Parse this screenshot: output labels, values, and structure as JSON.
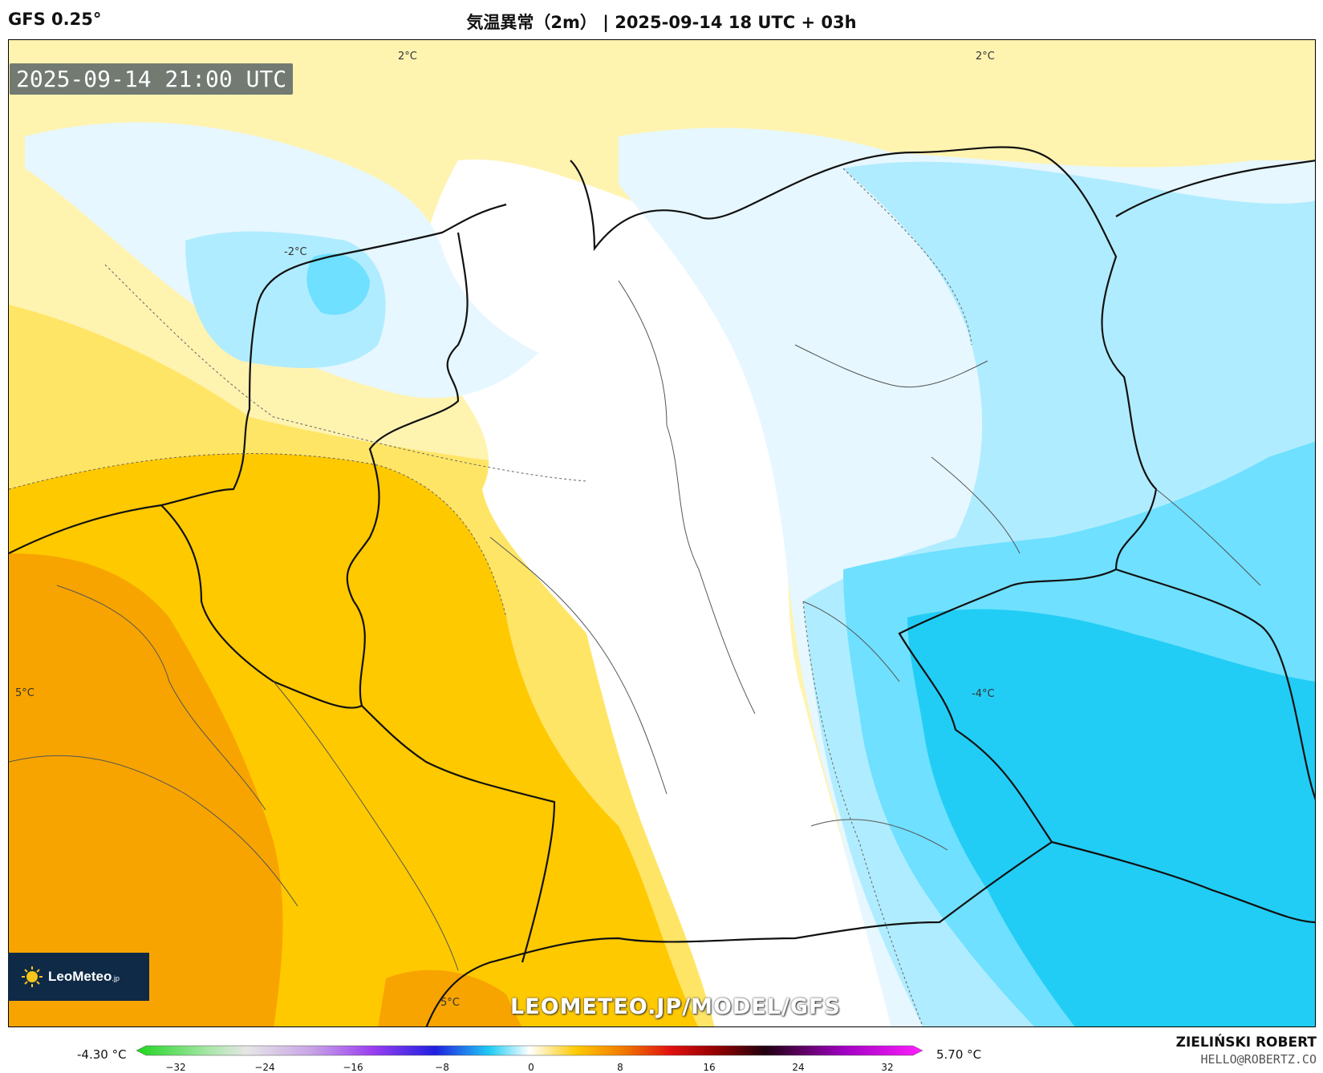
{
  "header": {
    "model": "GFS 0.25°",
    "title": "気温異常（2m） | 2025-09-14 18 UTC + 03h"
  },
  "map": {
    "timestamp": "2025-09-14 21:00 UTC",
    "watermark": "LEOMETEO.JP/MODEL/GFS",
    "contour_labels": {
      "north_west": "2°C",
      "north_east": "2°C",
      "netherlands": "-2°C",
      "west": "5°C",
      "czech": "-4°C",
      "south": "5°C"
    },
    "logo": {
      "name": "LeoMeteo",
      "suffix": ".jp"
    }
  },
  "colorbar": {
    "min_label": "-4.30 °C",
    "max_label": "5.70 °C",
    "ticks": [
      "−32",
      "−24",
      "−16",
      "−8",
      "0",
      "8",
      "16",
      "24",
      "32"
    ]
  },
  "credits": {
    "author": "ZIELIŃSKI ROBERT",
    "email": "HELLO@ROBERTZ.CO"
  },
  "colors": {
    "warm_dark": "#f7a400",
    "warm_mid": "#ffc900",
    "warm_light": "#ffe566",
    "warm_pale": "#fff3b0",
    "neutral": "#ffffff",
    "cool_pale": "#e6f7ff",
    "cool_light": "#b0ecff",
    "cool_mid": "#6fe0ff",
    "cool_dark": "#22cdf5"
  }
}
